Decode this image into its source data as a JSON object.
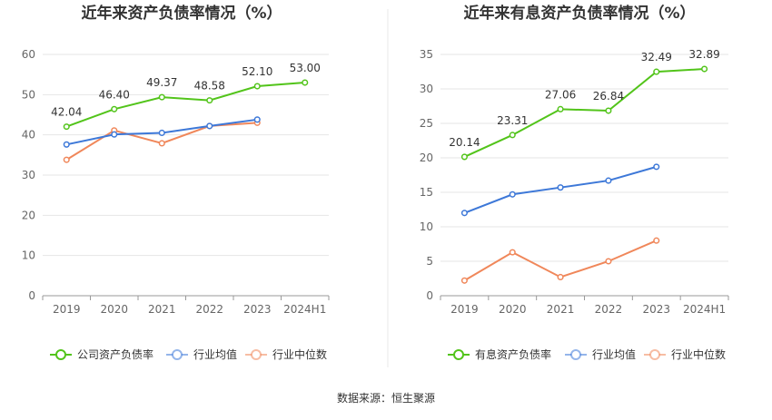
{
  "source_label": "数据来源：恒生聚源",
  "chart_data": [
    {
      "type": "line",
      "title": "近年来资产负债率情况（%）",
      "categories": [
        "2019",
        "2020",
        "2021",
        "2022",
        "2023",
        "2024H1"
      ],
      "ylim": [
        0,
        60
      ],
      "yticks": [
        0,
        10,
        20,
        30,
        40,
        50,
        60
      ],
      "grid": true,
      "legend_position": "bottom",
      "series": [
        {
          "name": "公司资产负债率",
          "color": "#52c41a",
          "values": [
            42.04,
            46.4,
            49.37,
            48.58,
            52.1,
            53.0
          ],
          "labels": [
            "42.04",
            "46.40",
            "49.37",
            "48.58",
            "52.10",
            "53.00"
          ]
        },
        {
          "name": "行业均值",
          "color": "#3d78d8",
          "values": [
            37.6,
            40.1,
            40.5,
            42.2,
            43.8,
            null
          ]
        },
        {
          "name": "行业中位数",
          "color": "#f0875a",
          "values": [
            33.8,
            41.1,
            37.9,
            42.2,
            43.0,
            null
          ]
        }
      ]
    },
    {
      "type": "line",
      "title": "近年来有息资产负债率情况（%）",
      "categories": [
        "2019",
        "2020",
        "2021",
        "2022",
        "2023",
        "2024H1"
      ],
      "ylim": [
        0,
        35
      ],
      "yticks": [
        0,
        5,
        10,
        15,
        20,
        25,
        30,
        35
      ],
      "grid": true,
      "legend_position": "bottom",
      "series": [
        {
          "name": "有息资产负债率",
          "color": "#52c41a",
          "values": [
            20.14,
            23.31,
            27.06,
            26.84,
            32.49,
            32.89
          ],
          "labels": [
            "20.14",
            "23.31",
            "27.06",
            "26.84",
            "32.49",
            "32.89"
          ]
        },
        {
          "name": "行业均值",
          "color": "#3d78d8",
          "values": [
            12.0,
            14.7,
            15.7,
            16.7,
            18.7,
            null
          ]
        },
        {
          "name": "行业中位数",
          "color": "#f0875a",
          "values": [
            2.2,
            6.3,
            2.7,
            5.0,
            8.0,
            null
          ]
        }
      ]
    }
  ]
}
